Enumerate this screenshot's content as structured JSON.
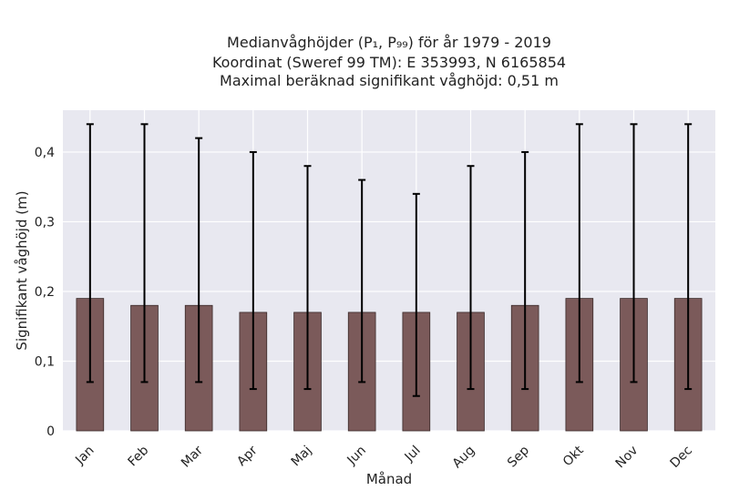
{
  "chart_data": {
    "type": "bar",
    "title_lines": [
      "Medianvåghöjder (P₁, P₉₉) för år 1979 - 2019",
      "Koordinat (Sweref 99 TM): E 353993, N 6165854",
      "Maximal beräknad signifikant våghöjd: 0,51 m"
    ],
    "xlabel": "Månad",
    "ylabel": "Signifikant våghöjd (m)",
    "categories": [
      "Jan",
      "Feb",
      "Mar",
      "Apr",
      "Maj",
      "Jun",
      "Jul",
      "Aug",
      "Sep",
      "Okt",
      "Nov",
      "Dec"
    ],
    "series": [
      {
        "values": [
          0.19,
          0.18,
          0.18,
          0.17,
          0.17,
          0.17,
          0.17,
          0.17,
          0.18,
          0.19,
          0.19,
          0.19
        ],
        "err_low": [
          0.07,
          0.07,
          0.07,
          0.06,
          0.06,
          0.07,
          0.05,
          0.06,
          0.06,
          0.07,
          0.07,
          0.06
        ],
        "err_high": [
          0.44,
          0.44,
          0.42,
          0.4,
          0.38,
          0.36,
          0.34,
          0.38,
          0.4,
          0.44,
          0.44,
          0.44
        ]
      }
    ],
    "ylim": [
      0,
      0.46
    ],
    "yticks": [
      0,
      0.1,
      0.2,
      0.3,
      0.4
    ],
    "ytick_labels": [
      "0",
      "0,1",
      "0,2",
      "0,3",
      "0,4"
    ],
    "grid": true,
    "colors": {
      "bar": "#7b5a5a",
      "bar_edge": "#3a2a2a",
      "errorbar": "#000000",
      "plot_bg": "#e8e8f0",
      "grid": "#ffffff"
    }
  }
}
